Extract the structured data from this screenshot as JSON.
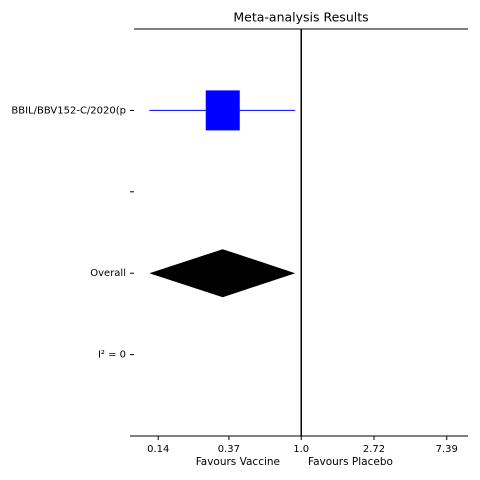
{
  "chart_data": {
    "type": "forest",
    "title": "Meta-analysis Results",
    "categories": [
      "BBIL/BBV152-C/2020(p",
      null,
      "Overall",
      "I² = 0"
    ],
    "values": [
      0.34,
      null,
      0.34,
      null
    ],
    "ci_low": [
      0.124,
      null,
      0.124,
      null
    ],
    "ci_high": [
      0.92,
      null,
      0.92,
      null
    ],
    "shapes": [
      "square",
      null,
      "diamond",
      null
    ],
    "colors": [
      "#0000ff",
      null,
      "#000000",
      null
    ],
    "xscale": "log",
    "xlim": [
      0.095,
      9.9
    ],
    "xticks": [
      0.14,
      0.37,
      {
        "value": 1,
        "label": "1.0"
      },
      2.72,
      7.39
    ],
    "ref_line": 1,
    "xlabels": [
      "Favours Vaccine",
      "Favours Placebo"
    ]
  }
}
